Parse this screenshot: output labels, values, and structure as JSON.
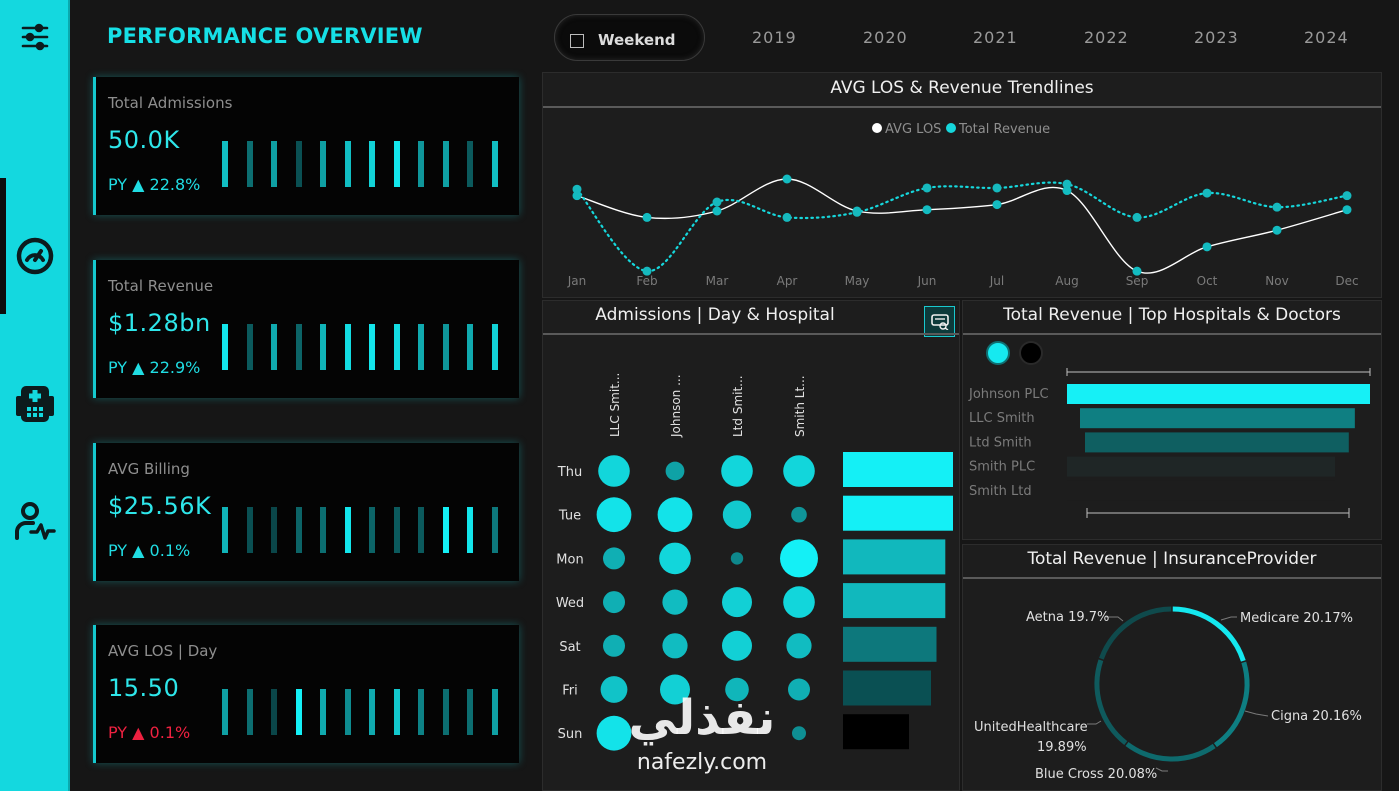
{
  "page_title": "PERFORMANCE OVERVIEW",
  "sidebar": {
    "items": [
      {
        "name": "filters-icon"
      },
      {
        "name": "gauge-icon",
        "active": true
      },
      {
        "name": "hospital-icon"
      },
      {
        "name": "patient-activity-icon"
      }
    ]
  },
  "filters": {
    "weekend_label": "Weekend",
    "years": [
      "2019",
      "2020",
      "2021",
      "2022",
      "2023",
      "2024"
    ]
  },
  "kpis": [
    {
      "label": "Total Admissions",
      "value": "50.0K",
      "py": "PY ▲ 22.8%",
      "py_negative": false,
      "bar_levels": [
        0.75,
        0.35,
        0.6,
        0.2,
        0.6,
        0.75,
        0.85,
        0.95,
        0.55,
        0.6,
        0.25,
        0.75
      ]
    },
    {
      "label": "Total Revenue",
      "value": "$1.28bn",
      "py": "PY ▲ 22.9%",
      "py_negative": false,
      "bar_levels": [
        0.95,
        0.25,
        0.65,
        0.3,
        0.7,
        0.9,
        0.95,
        0.9,
        0.65,
        0.55,
        0.65,
        0.85
      ]
    },
    {
      "label": "AVG Billing",
      "value": "$25.56K",
      "py": "PY ▲ 0.1%",
      "py_negative": false,
      "bar_levels": [
        0.7,
        0.2,
        0.15,
        0.3,
        0.35,
        0.95,
        0.3,
        0.25,
        0.25,
        1.0,
        0.95,
        0.4
      ]
    },
    {
      "label": "AVG LOS | Day",
      "value": "15.50",
      "py": "PY ▲ 0.1%",
      "py_negative": true,
      "bar_levels": [
        0.6,
        0.35,
        0.15,
        1.0,
        0.65,
        0.5,
        0.65,
        0.8,
        0.45,
        0.35,
        0.35,
        0.6
      ]
    }
  ],
  "trend_panel": {
    "title": "AVG LOS & Revenue Trendlines",
    "legend": [
      "AVG LOS",
      "Total Revenue"
    ]
  },
  "chart_data": [
    {
      "type": "line",
      "title": "AVG LOS & Revenue Trendlines",
      "x": [
        "Jan",
        "Feb",
        "Mar",
        "Apr",
        "May",
        "Jun",
        "Jul",
        "Aug",
        "Sep",
        "Oct",
        "Nov",
        "Dec"
      ],
      "series": [
        {
          "name": "AVG LOS",
          "style": "solid",
          "color": "#ffffff",
          "values": [
            0.62,
            0.45,
            0.5,
            0.75,
            0.5,
            0.51,
            0.55,
            0.66,
            0.03,
            0.22,
            0.35,
            0.51
          ]
        },
        {
          "name": "Total Revenue",
          "style": "dotted",
          "color": "#16d7dc",
          "values": [
            0.67,
            0.03,
            0.57,
            0.45,
            0.49,
            0.68,
            0.68,
            0.71,
            0.45,
            0.64,
            0.53,
            0.62
          ]
        }
      ],
      "ylim": [
        0,
        1
      ]
    },
    {
      "type": "scatter",
      "title": "Admissions | Day & Hospital",
      "columns": [
        "LLC Smit...",
        "Johnson ...",
        "Ltd Smit...",
        "Smith Lt..."
      ],
      "rows": [
        "Thu",
        "Tue",
        "Mon",
        "Wed",
        "Sat",
        "Fri",
        "Sun"
      ],
      "sizes": [
        [
          0.8,
          0.4,
          0.8,
          0.8
        ],
        [
          0.9,
          0.9,
          0.7,
          0.3
        ],
        [
          0.5,
          0.8,
          0.2,
          1.0
        ],
        [
          0.5,
          0.6,
          0.75,
          0.8
        ],
        [
          0.5,
          0.6,
          0.75,
          0.6
        ],
        [
          0.65,
          0.75,
          0.55,
          0.5
        ],
        [
          0.9,
          0.0,
          0.0,
          0.25
        ]
      ],
      "row_totals": [
        1.0,
        1.0,
        0.93,
        0.93,
        0.85,
        0.8,
        0.6
      ]
    },
    {
      "type": "bar",
      "title": "Total Revenue | Top Hospitals & Doctors",
      "categories": [
        "Johnson PLC",
        "LLC Smith",
        "Ltd Smith",
        "Smith PLC",
        "Smith Ltd"
      ],
      "values": [
        1.0,
        0.95,
        0.93,
        0.0,
        0.0
      ]
    },
    {
      "type": "pie",
      "title": "Total Revenue | InsuranceProvider",
      "labels": [
        "Medicare 20.17%",
        "Cigna 20.16%",
        "Blue Cross 20.08%",
        "UnitedHealthcare 19.89%",
        "Aetna 19.7%"
      ],
      "values": [
        20.17,
        20.16,
        20.08,
        19.89,
        19.7
      ]
    }
  ],
  "admissions_panel": {
    "title": "Admissions | Day & Hospital",
    "columns": [
      "LLC Smit...",
      "Johnson ...",
      "Ltd Smit...",
      "Smith Lt..."
    ],
    "rows": [
      "Thu",
      "Tue",
      "Mon",
      "Wed",
      "Sat",
      "Fri",
      "Sun"
    ]
  },
  "revenue_panel": {
    "title": "Total Revenue | Top Hospitals & Doctors",
    "categories": [
      "Johnson PLC",
      "LLC Smith",
      "Ltd Smith",
      "Smith PLC",
      "Smith Ltd"
    ]
  },
  "insurance_panel": {
    "title": "Total Revenue | InsuranceProvider",
    "labels": {
      "aetna": "Aetna 19.7%",
      "medicare": "Medicare 20.17%",
      "cigna": "Cigna 20.16%",
      "unitedhealthcare": "UnitedHealthcare",
      "unitedhealthcare_pct": "19.89%",
      "bluecross": "Blue Cross 20.08%"
    }
  },
  "watermark": {
    "arabic": "نفذلي",
    "latin": "nafezly.com"
  },
  "colors": {
    "accent": "#14d8df",
    "negative": "#ee2140",
    "panel": "#1d1d1d",
    "background": "#161616"
  }
}
